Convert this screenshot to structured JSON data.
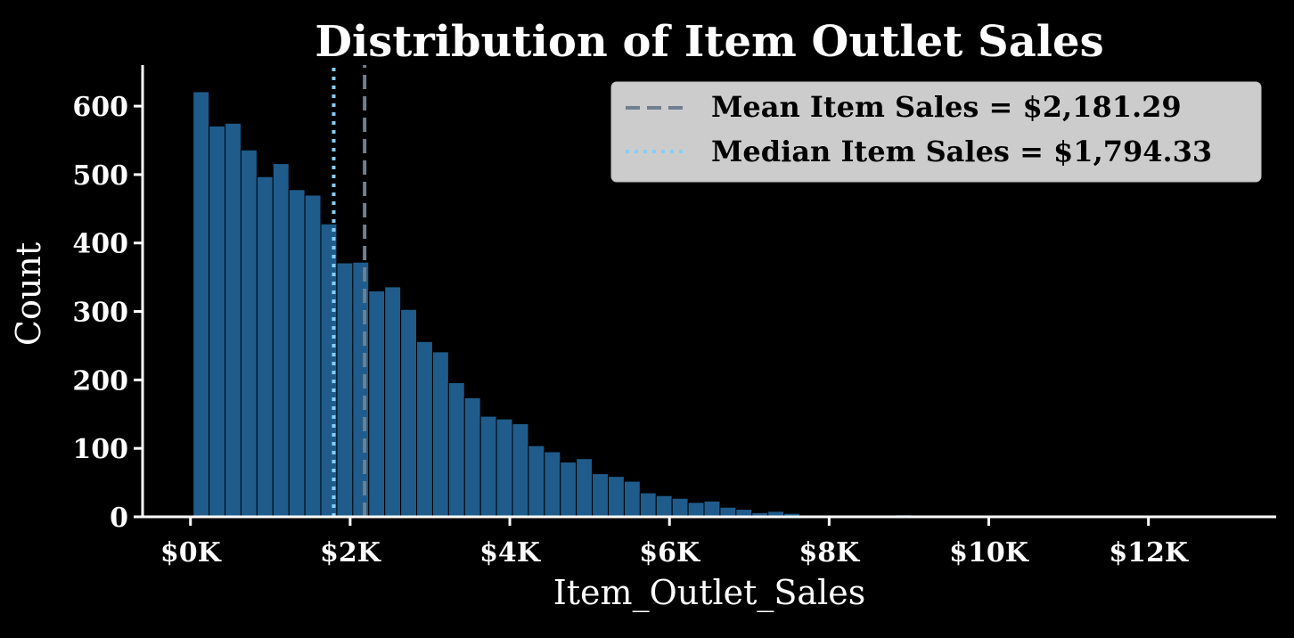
{
  "chart_data": {
    "type": "bar",
    "title": "Distribution of Item Outlet Sales",
    "xlabel": "Item_Outlet_Sales",
    "ylabel": "Count",
    "xlim": [
      -600,
      13600
    ],
    "ylim": [
      0,
      660
    ],
    "bin_start": 33,
    "bin_width": 200,
    "values": [
      621,
      571,
      575,
      536,
      497,
      516,
      478,
      470,
      428,
      371,
      372,
      330,
      336,
      303,
      256,
      241,
      196,
      174,
      147,
      143,
      136,
      104,
      95,
      80,
      85,
      63,
      59,
      52,
      35,
      31,
      27,
      21,
      23,
      14,
      11,
      6,
      8,
      5,
      2,
      1,
      1,
      1,
      1,
      1,
      3,
      2,
      1,
      1,
      1
    ],
    "x_ticks": [
      {
        "value": 0,
        "label": "$0K"
      },
      {
        "value": 2000,
        "label": "$2K"
      },
      {
        "value": 4000,
        "label": "$4K"
      },
      {
        "value": 6000,
        "label": "$6K"
      },
      {
        "value": 8000,
        "label": "$8K"
      },
      {
        "value": 10000,
        "label": "$10K"
      },
      {
        "value": 12000,
        "label": "$12K"
      }
    ],
    "y_ticks": [
      {
        "value": 0,
        "label": "0"
      },
      {
        "value": 100,
        "label": "100"
      },
      {
        "value": 200,
        "label": "200"
      },
      {
        "value": 300,
        "label": "300"
      },
      {
        "value": 400,
        "label": "400"
      },
      {
        "value": 500,
        "label": "500"
      },
      {
        "value": 600,
        "label": "600"
      }
    ],
    "mean": 2181.29,
    "median": 1794.33,
    "legend": [
      {
        "label": "Mean Item Sales = $2,181.29",
        "style": "dashed",
        "color": "#708090"
      },
      {
        "label": "Median Item Sales = $1,794.33",
        "style": "dotted",
        "color": "#87cefa"
      }
    ],
    "legend_location": "top-right",
    "bar_color": "#1f5c8b",
    "bar_edge_color": "#000000",
    "grid": false
  }
}
